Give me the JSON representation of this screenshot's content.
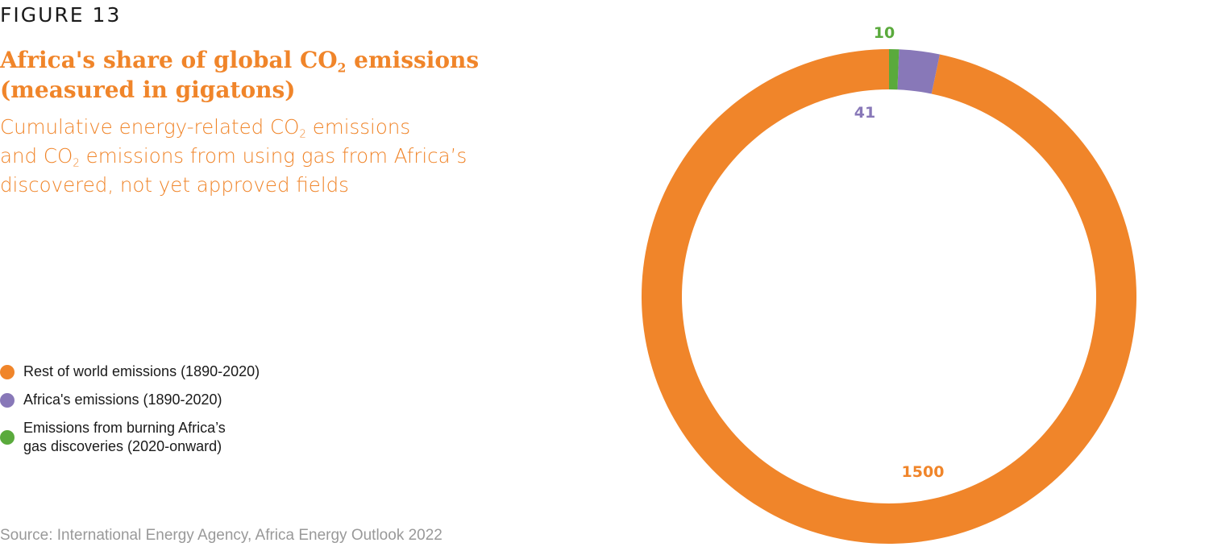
{
  "figure_label": "FIGURE 13",
  "title": {
    "lines": [
      {
        "pre": "Africa's share of global CO",
        "sub": "2",
        "post": " emissions"
      },
      {
        "pre": "(measured in gigatons)"
      }
    ]
  },
  "subtitle": {
    "lines": [
      {
        "pre": "Cumulative energy-related CO",
        "sub": "2",
        "post": " emissions"
      },
      {
        "pre": "and CO",
        "sub": "2",
        "post": " emissions from using gas from Africa’s"
      },
      {
        "pre": "discovered, not yet approved fields"
      }
    ]
  },
  "source": "Source: International Energy Agency, Africa Energy Outlook 2022",
  "chart_data": {
    "type": "pie",
    "variant": "donut",
    "title": "Africa's share of global CO2 emissions (measured in gigatons)",
    "series": [
      {
        "name": "Rest of world emissions (1890-2020)",
        "legend_lines": [
          "Rest of world emissions (1890-2020)"
        ],
        "value": 1500,
        "label": "1500",
        "color": "#f0852a"
      },
      {
        "name": "Africa's emissions (1890-2020)",
        "legend_lines": [
          "Africa's emissions (1890-2020)"
        ],
        "value": 41,
        "label": "41",
        "color": "#8878b8"
      },
      {
        "name": "Emissions from burning Africa’s gas discoveries (2020-onward)",
        "legend_lines": [
          "Emissions from burning Africa’s",
          "gas discoveries (2020-onward)"
        ],
        "value": 10,
        "label": "10",
        "color": "#5aaa3c"
      }
    ],
    "legend_position": "left",
    "start_angle": "top",
    "direction": "counterclockwise"
  }
}
